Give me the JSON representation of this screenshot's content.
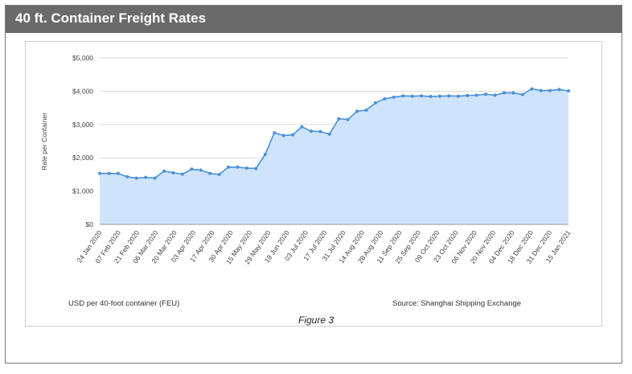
{
  "header": {
    "title": "40 ft. Container Freight Rates"
  },
  "footer": {
    "left_note": "USD per 40-foot container (FEU)",
    "source": "Source: Shanghai Shipping Exchange",
    "caption": "Figure 3"
  },
  "colors": {
    "header_bg": "#6a6a6a",
    "line": "#4a90d9",
    "fill": "#cfe4fb",
    "grid": "#d9d9d9"
  },
  "chart_data": {
    "type": "area",
    "title": "",
    "xlabel": "",
    "ylabel": "Rate per Container",
    "ylim": [
      0,
      5000
    ],
    "y_ticks": [
      0,
      1000,
      2000,
      3000,
      4000,
      5000
    ],
    "y_tick_labels": [
      "$0",
      "$1,000",
      "$2,000",
      "$3,000",
      "$4,000",
      "$5,000"
    ],
    "grid": true,
    "x_tick_labels": [
      "24 Jan 2020",
      "07 Feb 2020",
      "21 Feb 2020",
      "06 Mar 2020",
      "20 Mar 2020",
      "03 Apr 2020",
      "17 Apr 2020",
      "30 Apr 2020",
      "15 May 2020",
      "29 May 2020",
      "19 Jun 2020",
      "03 Jul 2020",
      "17 Jul 2020",
      "31 Jul 2020",
      "14 Aug 2020",
      "28 Aug 2020",
      "11 Sep 2020",
      "25 Sep 2020",
      "09 Oct 2020",
      "23 Oct 2020",
      "06 Nov 2020",
      "20 Nov 2020",
      "04 Dec 2020",
      "18 Dec 2020",
      "31 Dec 2020",
      "15 Jan 2021"
    ],
    "series": [
      {
        "values": [
          1530,
          1530,
          1530,
          1430,
          1390,
          1410,
          1390,
          1600,
          1550,
          1510,
          1660,
          1630,
          1530,
          1500,
          1720,
          1720,
          1690,
          1680,
          2100,
          2750,
          2670,
          2690,
          2930,
          2800,
          2790,
          2710,
          3170,
          3150,
          3400,
          3430,
          3650,
          3770,
          3820,
          3860,
          3850,
          3860,
          3840,
          3850,
          3860,
          3850,
          3870,
          3880,
          3910,
          3880,
          3950,
          3950,
          3900,
          4070,
          4020,
          4020,
          4050,
          4010
        ]
      }
    ]
  }
}
